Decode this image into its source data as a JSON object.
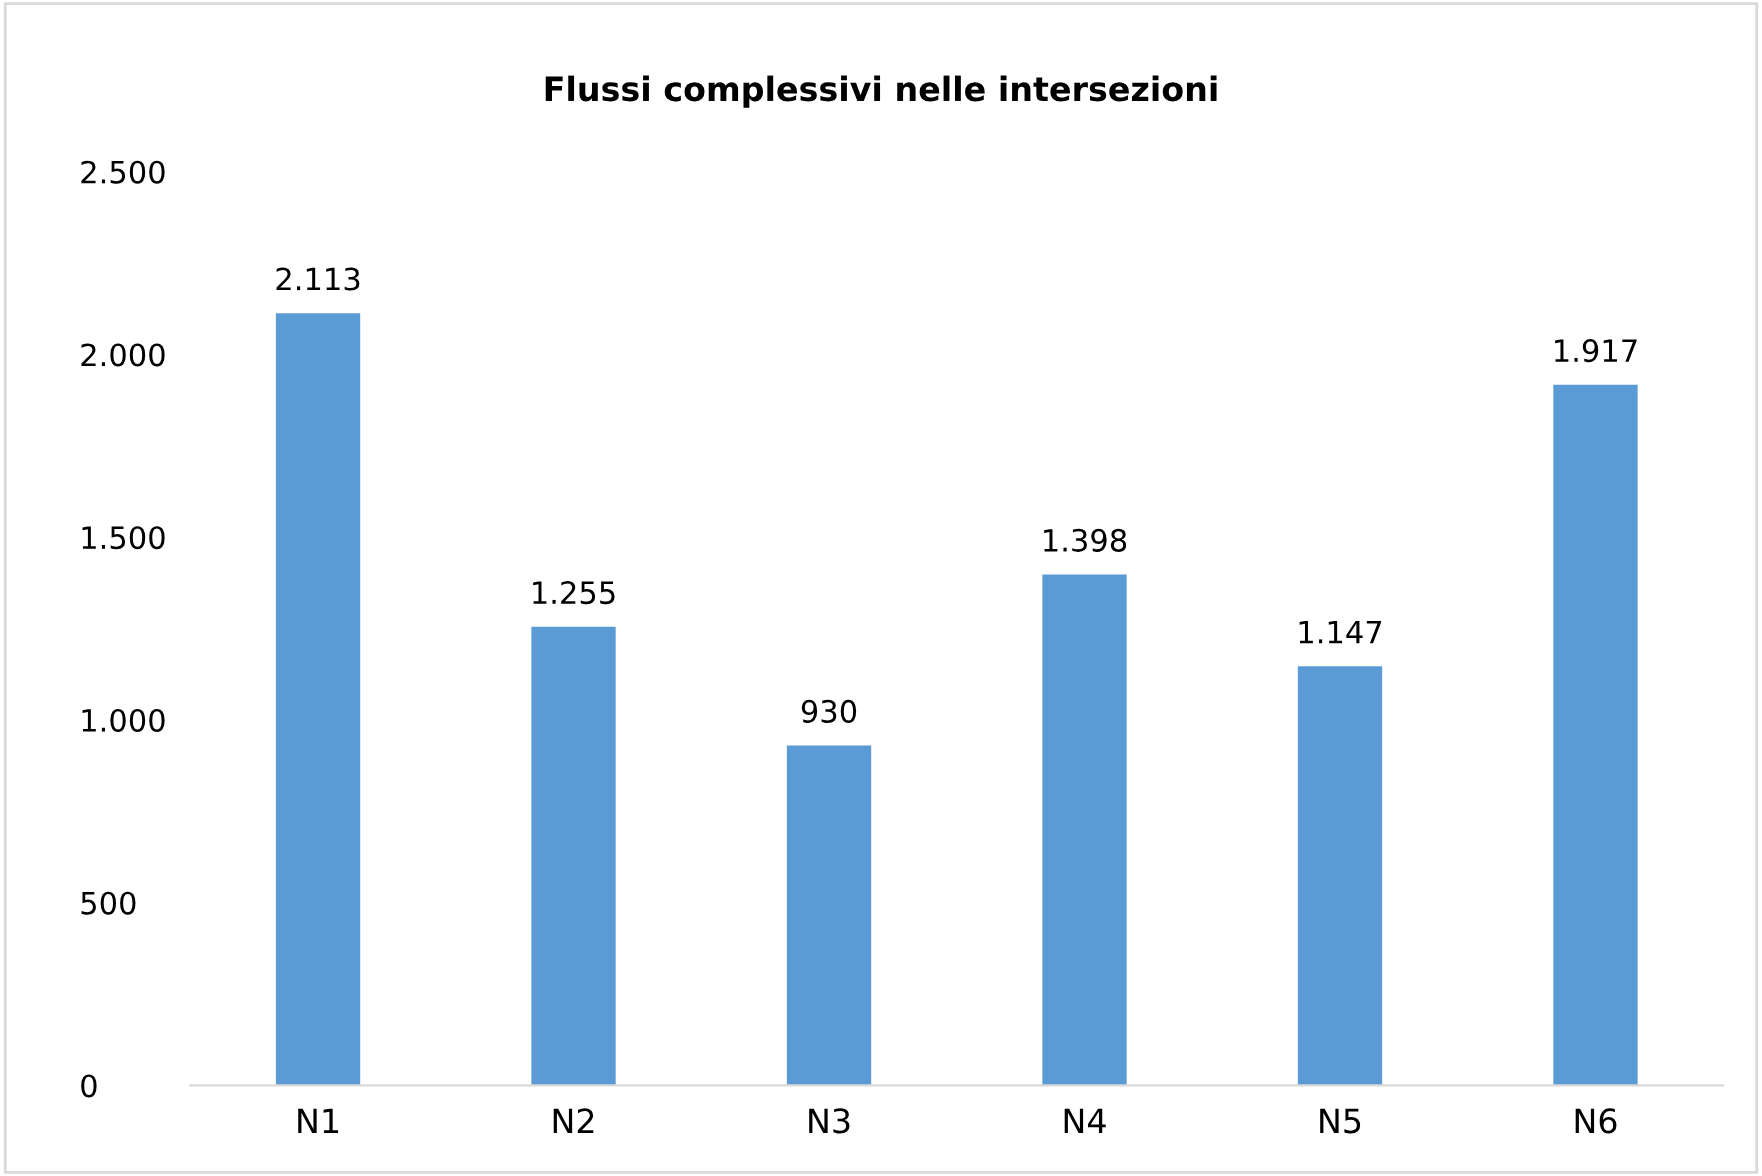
{
  "chart_data": {
    "type": "bar",
    "title": "Flussi complessivi nelle intersezioni",
    "categories": [
      "N1",
      "N2",
      "N3",
      "N4",
      "N5",
      "N6"
    ],
    "values": [
      2113,
      1255,
      930,
      1398,
      1147,
      1917
    ],
    "value_labels": [
      "2.113",
      "1.255",
      "930",
      "1.398",
      "1.147",
      "1.917"
    ],
    "color": "#5b9bd5",
    "ylim": [
      0,
      2500
    ],
    "yticks": [
      0,
      500,
      {
        "value": 1000,
        "label": "1.000"
      },
      {
        "value": 1500,
        "label": "1.500"
      },
      {
        "value": 2000,
        "label": "2.000"
      },
      {
        "value": 2500,
        "label": "2.500"
      }
    ],
    "grid": false,
    "legend": false
  }
}
